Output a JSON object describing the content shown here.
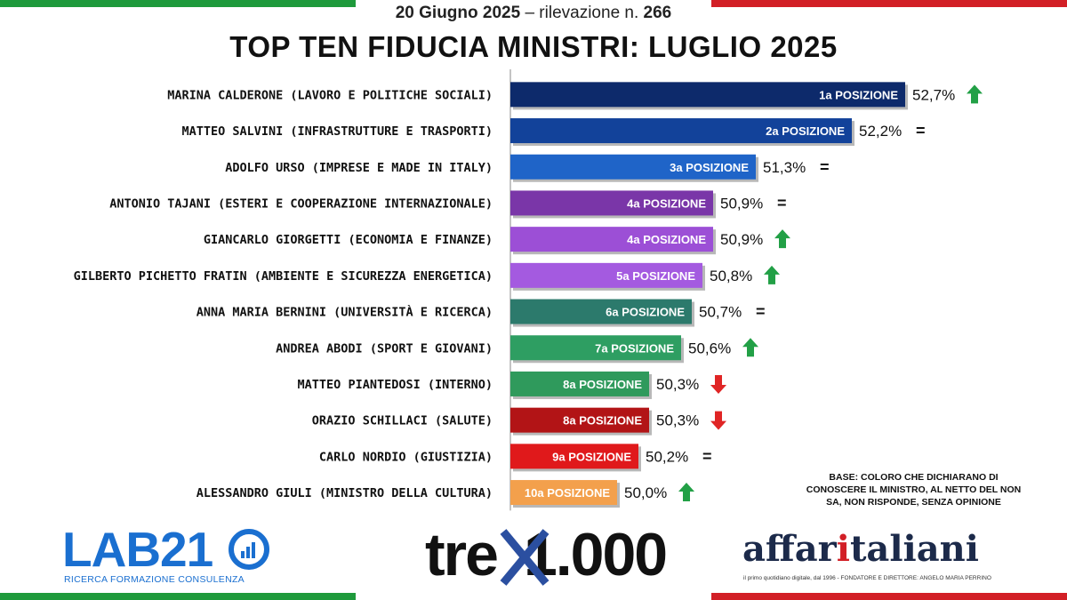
{
  "header": {
    "date_bold": "20 Giugno 2025",
    "date_rest": " – rilevazione n. ",
    "survey_number": "266",
    "title": "TOP TEN FIDUCIA MINISTRI:  LUGLIO 2025"
  },
  "chart_data": {
    "type": "bar",
    "orientation": "horizontal",
    "title": "TOP TEN FIDUCIA MINISTRI:  LUGLIO 2025",
    "xlim": [
      49,
      52.7
    ],
    "categories": [
      "MARINA CALDERONE (LAVORO E POLITICHE SOCIALI)",
      "MATTEO SALVINI (INFRASTRUTTURE E TRASPORTI)",
      "ADOLFO URSO (IMPRESE E MADE IN ITALY)",
      "ANTONIO TAJANI (ESTERI E COOPERAZIONE INTERNAZIONALE)",
      "GIANCARLO GIORGETTI (ECONOMIA E FINANZE)",
      "GILBERTO PICHETTO FRATIN (AMBIENTE E SICUREZZA ENERGETICA)",
      "ANNA MARIA BERNINI (UNIVERSITÀ E RICERCA)",
      "ANDREA ABODI (SPORT E GIOVANI)",
      "MATTEO PIANTEDOSI (INTERNO)",
      "ORAZIO SCHILLACI (SALUTE)",
      "CARLO NORDIO (GIUSTIZIA)",
      "ALESSANDRO GIULI (MINISTRO DELLA CULTURA)"
    ],
    "values": [
      52.7,
      52.2,
      51.3,
      50.9,
      50.9,
      50.8,
      50.7,
      50.6,
      50.3,
      50.3,
      50.2,
      50.0
    ],
    "value_labels": [
      "52,7%",
      "52,2%",
      "51,3%",
      "50,9%",
      "50,9%",
      "50,8%",
      "50,7%",
      "50,6%",
      "50,3%",
      "50,3%",
      "50,2%",
      "50,0%"
    ],
    "positions": [
      "1a POSIZIONE",
      "2a POSIZIONE",
      "3a POSIZIONE",
      "4a POSIZIONE",
      "4a POSIZIONE",
      "5a POSIZIONE",
      "6a POSIZIONE",
      "7a POSIZIONE",
      "8a POSIZIONE",
      "8a POSIZIONE",
      "9a POSIZIONE",
      "10a POSIZIONE"
    ],
    "trends": [
      "up",
      "equal",
      "equal",
      "equal",
      "up",
      "up",
      "equal",
      "up",
      "down",
      "down",
      "equal",
      "up"
    ],
    "colors": [
      "#0d2a6b",
      "#12429a",
      "#1f64c8",
      "#7a36a8",
      "#9c4fd6",
      "#a45ae0",
      "#2c7a6c",
      "#2e9e62",
      "#2f9a5c",
      "#b21416",
      "#e0191b",
      "#f3a04c"
    ],
    "equal_symbol": "="
  },
  "trend_colors": {
    "up": "#22a046",
    "down": "#e02525"
  },
  "note": "BASE: COLORO CHE DICHIARANO DI CONOSCERE IL MINISTRO, AL NETTO DEL NON SA, NON RISPONDE, SENZA OPINIONE",
  "logos": {
    "lab21": {
      "name": "LAB21",
      "tagline": "RICERCA FORMAZIONE CONSULENZA"
    },
    "tre": {
      "left": "tre",
      "right": "1.000"
    },
    "affari": {
      "prefix": "affar",
      "accent": "i",
      "rest": "taliani",
      "tagline": "il primo quotidiano digitale, dal 1996 - FONDATORE E DIRETTORE: ANGELO MARIA PERRINO"
    }
  }
}
